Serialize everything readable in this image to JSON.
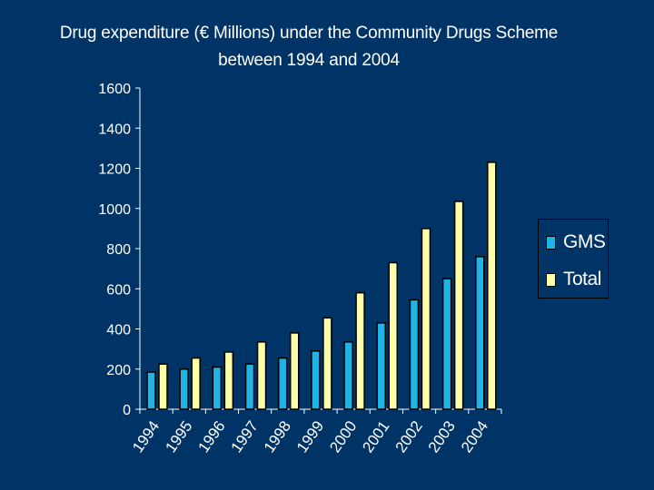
{
  "chart_data": {
    "type": "bar",
    "title": {
      "line1": "Drug expenditure (€ Millions) under the Community Drugs Scheme",
      "line2": "between 1994 and 2004"
    },
    "categories": [
      "1994",
      "1995",
      "1996",
      "1997",
      "1998",
      "1999",
      "2000",
      "2001",
      "2002",
      "2003",
      "2004"
    ],
    "series": [
      {
        "name": "GMS",
        "color": "#1eb4e6",
        "values": [
          185,
          200,
          210,
          225,
          255,
          290,
          335,
          430,
          545,
          650,
          760
        ]
      },
      {
        "name": "Total",
        "color": "#ffffaa",
        "values": [
          225,
          255,
          285,
          335,
          380,
          455,
          580,
          730,
          900,
          1035,
          1230
        ]
      }
    ],
    "y_ticks": [
      "0",
      "200",
      "400",
      "600",
      "800",
      "1000",
      "1200",
      "1400",
      "1600"
    ],
    "ylim": [
      0,
      1600
    ],
    "xlabel": "",
    "ylabel": "",
    "legend_position": "right",
    "grid": false
  }
}
